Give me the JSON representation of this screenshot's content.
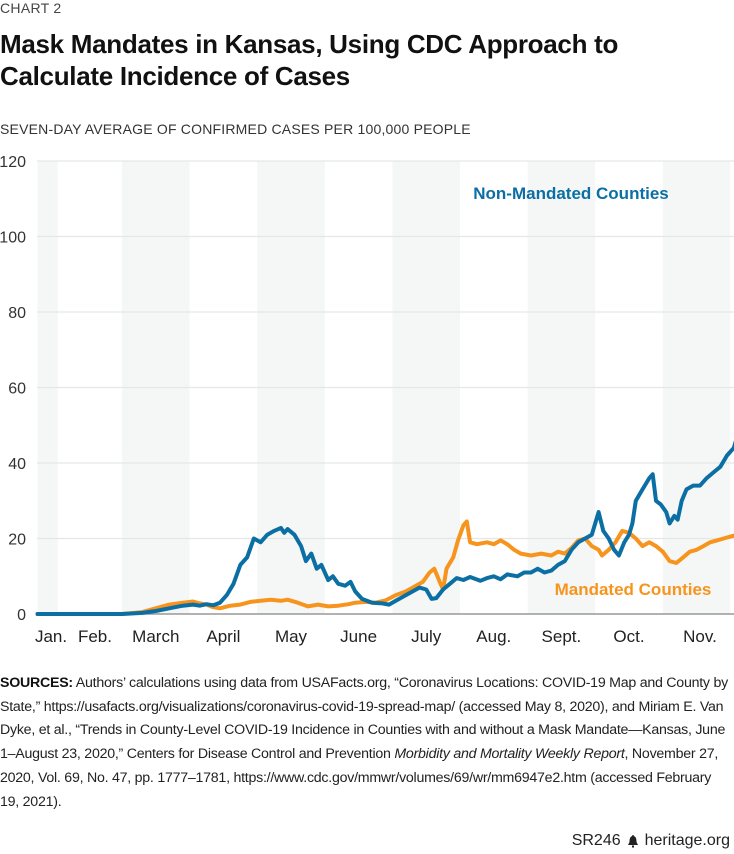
{
  "kicker": "CHART 2",
  "title": "Mask Mandates in Kansas, Using CDC Approach to Calculate Incidence of Cases",
  "subtitle": "SEVEN-DAY AVERAGE OF CONFIRMED CASES PER 100,000 PEOPLE",
  "sources": {
    "label": "SOURCES:",
    "part1": " Authors’ calculations using data from USAFacts.org, “Coronavirus Locations: COVID-19 Map and County by State,” https://usafacts.org/visualizations/coronavirus-covid-19-spread-map/ (accessed May 8, 2020), and Miriam E. Van Dyke, et al., “Trends in County-Level COVID-19 Incidence in Counties with and without a Mask Mandate—Kansas, June 1–August 23, 2020,” Centers for Disease Control and Prevention ",
    "journal": "Morbidity and Mortality Weekly Report",
    "part2": ", November 27, 2020, Vol. 69, No. 47, pp. 1777–1781, https://www.cdc.gov/mmwr/volumes/69/wr/mm6947e2.htm (accessed February 19, 2021)."
  },
  "footer": {
    "report_id": "SR246",
    "logo_icon": "liberty-bell-icon",
    "site": "heritage.org"
  },
  "chart_data": {
    "type": "line",
    "title": "Mask Mandates in Kansas, Using CDC Approach to Calculate Incidence of Cases",
    "ylabel": "Seven-day average of confirmed cases per 100,000 people",
    "xlabel": "",
    "x_unit": "month index (0 = Jan 1, 2 = Mar 1, 10 = Nov 1)",
    "xlim": [
      0.75,
      11.0
    ],
    "ylim": [
      0,
      120
    ],
    "yticks": [
      0,
      20,
      40,
      60,
      80,
      100,
      120
    ],
    "grid": true,
    "month_labels": [
      {
        "label": "Jan.",
        "x": 0.95
      },
      {
        "label": "Feb.",
        "x": 1.6
      },
      {
        "label": "March",
        "x": 2.5
      },
      {
        "label": "April",
        "x": 3.5
      },
      {
        "label": "May",
        "x": 4.5
      },
      {
        "label": "June",
        "x": 5.5
      },
      {
        "label": "July",
        "x": 6.5
      },
      {
        "label": "Aug.",
        "x": 7.5
      },
      {
        "label": "Sept.",
        "x": 8.5
      },
      {
        "label": "Oct.",
        "x": 9.5
      },
      {
        "label": "Nov.",
        "x": 10.55
      }
    ],
    "shaded_months": [
      [
        0.75,
        1.05
      ],
      [
        2,
        3
      ],
      [
        4,
        5
      ],
      [
        6,
        7
      ],
      [
        8,
        9
      ],
      [
        10,
        11
      ]
    ],
    "colors": {
      "non_mandated": "#0b6fa4",
      "mandated": "#f7941d",
      "band": "#f5f7f7",
      "grid": "#e6e6e6",
      "axis": "#999999"
    },
    "series": [
      {
        "name": "Non-Mandated Counties",
        "label_position": "upper-center",
        "points": [
          [
            0.75,
            0
          ],
          [
            1.0,
            0
          ],
          [
            1.5,
            0
          ],
          [
            2.0,
            0
          ],
          [
            2.3,
            0.3
          ],
          [
            2.5,
            0.8
          ],
          [
            2.7,
            1.5
          ],
          [
            2.9,
            2.2
          ],
          [
            3.05,
            2.5
          ],
          [
            3.15,
            2.2
          ],
          [
            3.25,
            2.6
          ],
          [
            3.35,
            2.3
          ],
          [
            3.45,
            3
          ],
          [
            3.55,
            5
          ],
          [
            3.65,
            8
          ],
          [
            3.75,
            13
          ],
          [
            3.85,
            15
          ],
          [
            3.95,
            20
          ],
          [
            4.05,
            19
          ],
          [
            4.15,
            21
          ],
          [
            4.25,
            22
          ],
          [
            4.35,
            22.8
          ],
          [
            4.4,
            21.5
          ],
          [
            4.45,
            22.5
          ],
          [
            4.55,
            21
          ],
          [
            4.65,
            18
          ],
          [
            4.72,
            14
          ],
          [
            4.8,
            16
          ],
          [
            4.88,
            12
          ],
          [
            4.95,
            13
          ],
          [
            5.05,
            9
          ],
          [
            5.12,
            10
          ],
          [
            5.2,
            8
          ],
          [
            5.3,
            7.5
          ],
          [
            5.38,
            8.5
          ],
          [
            5.45,
            6
          ],
          [
            5.55,
            4
          ],
          [
            5.7,
            3
          ],
          [
            5.85,
            2.8
          ],
          [
            5.95,
            2.5
          ],
          [
            6.05,
            3.5
          ],
          [
            6.2,
            5
          ],
          [
            6.3,
            6
          ],
          [
            6.4,
            7
          ],
          [
            6.5,
            6.5
          ],
          [
            6.58,
            4
          ],
          [
            6.65,
            4.2
          ],
          [
            6.75,
            6.5
          ],
          [
            6.85,
            8
          ],
          [
            6.95,
            9.5
          ],
          [
            7.05,
            9
          ],
          [
            7.15,
            9.8
          ],
          [
            7.3,
            8.8
          ],
          [
            7.4,
            9.5
          ],
          [
            7.5,
            10
          ],
          [
            7.6,
            9.2
          ],
          [
            7.7,
            10.5
          ],
          [
            7.85,
            10
          ],
          [
            7.95,
            11
          ],
          [
            8.05,
            11
          ],
          [
            8.15,
            12
          ],
          [
            8.25,
            11
          ],
          [
            8.35,
            11.5
          ],
          [
            8.45,
            13
          ],
          [
            8.55,
            14
          ],
          [
            8.65,
            17
          ],
          [
            8.75,
            19
          ],
          [
            8.85,
            20
          ],
          [
            8.95,
            21
          ],
          [
            9.0,
            24
          ],
          [
            9.05,
            27
          ],
          [
            9.12,
            22
          ],
          [
            9.2,
            20
          ],
          [
            9.28,
            17
          ],
          [
            9.35,
            15.5
          ],
          [
            9.43,
            19
          ],
          [
            9.5,
            21
          ],
          [
            9.55,
            24
          ],
          [
            9.6,
            30
          ],
          [
            9.7,
            33
          ],
          [
            9.8,
            36
          ],
          [
            9.85,
            37
          ],
          [
            9.9,
            30
          ],
          [
            9.97,
            29
          ],
          [
            10.05,
            27
          ],
          [
            10.1,
            24
          ],
          [
            10.17,
            26
          ],
          [
            10.22,
            25
          ],
          [
            10.28,
            30
          ],
          [
            10.35,
            33
          ],
          [
            10.45,
            34
          ],
          [
            10.55,
            34
          ],
          [
            10.65,
            36
          ],
          [
            10.75,
            37.5
          ],
          [
            10.85,
            39
          ],
          [
            10.95,
            42
          ],
          [
            11.05,
            44
          ],
          [
            11.15,
            50
          ],
          [
            11.22,
            52
          ],
          [
            11.25,
            48
          ]
        ]
      },
      {
        "name": "Mandated Counties",
        "label_position": "lower-right",
        "points": [
          [
            0.75,
            0
          ],
          [
            1.0,
            0
          ],
          [
            1.5,
            0
          ],
          [
            2.0,
            0
          ],
          [
            2.3,
            0.5
          ],
          [
            2.5,
            1.5
          ],
          [
            2.7,
            2.5
          ],
          [
            2.9,
            3
          ],
          [
            3.05,
            3.3
          ],
          [
            3.15,
            2.8
          ],
          [
            3.25,
            2.5
          ],
          [
            3.35,
            1.8
          ],
          [
            3.45,
            1.5
          ],
          [
            3.6,
            2.2
          ],
          [
            3.75,
            2.5
          ],
          [
            3.9,
            3.2
          ],
          [
            4.05,
            3.5
          ],
          [
            4.2,
            3.8
          ],
          [
            4.35,
            3.5
          ],
          [
            4.45,
            3.8
          ],
          [
            4.6,
            3
          ],
          [
            4.75,
            2
          ],
          [
            4.9,
            2.5
          ],
          [
            5.05,
            2
          ],
          [
            5.2,
            2.2
          ],
          [
            5.35,
            2.6
          ],
          [
            5.45,
            3
          ],
          [
            5.6,
            3.2
          ],
          [
            5.75,
            3
          ],
          [
            5.9,
            3.6
          ],
          [
            6.05,
            5
          ],
          [
            6.2,
            6
          ],
          [
            6.3,
            7
          ],
          [
            6.45,
            8.5
          ],
          [
            6.55,
            11
          ],
          [
            6.62,
            12
          ],
          [
            6.7,
            8.5
          ],
          [
            6.75,
            6.5
          ],
          [
            6.8,
            12
          ],
          [
            6.9,
            15
          ],
          [
            6.97,
            19.5
          ],
          [
            7.05,
            23.5
          ],
          [
            7.1,
            24.5
          ],
          [
            7.15,
            19
          ],
          [
            7.25,
            18.5
          ],
          [
            7.4,
            19
          ],
          [
            7.5,
            18.5
          ],
          [
            7.6,
            19.5
          ],
          [
            7.7,
            18.5
          ],
          [
            7.8,
            17
          ],
          [
            7.9,
            16
          ],
          [
            8.05,
            15.5
          ],
          [
            8.2,
            16
          ],
          [
            8.35,
            15.5
          ],
          [
            8.45,
            16.5
          ],
          [
            8.55,
            16
          ],
          [
            8.65,
            17.5
          ],
          [
            8.75,
            19.5
          ],
          [
            8.85,
            20
          ],
          [
            8.95,
            18
          ],
          [
            9.05,
            17
          ],
          [
            9.1,
            15.5
          ],
          [
            9.2,
            17
          ],
          [
            9.3,
            19
          ],
          [
            9.4,
            22
          ],
          [
            9.5,
            21.5
          ],
          [
            9.6,
            20
          ],
          [
            9.7,
            18
          ],
          [
            9.8,
            19
          ],
          [
            9.9,
            18
          ],
          [
            10.0,
            16.5
          ],
          [
            10.1,
            14
          ],
          [
            10.2,
            13.5
          ],
          [
            10.3,
            15
          ],
          [
            10.4,
            16.5
          ],
          [
            10.5,
            17
          ],
          [
            10.6,
            18
          ],
          [
            10.7,
            19
          ],
          [
            10.8,
            19.5
          ],
          [
            10.9,
            20
          ],
          [
            11.0,
            20.5
          ],
          [
            11.1,
            21
          ],
          [
            11.2,
            22.5
          ],
          [
            11.25,
            23
          ]
        ]
      }
    ]
  }
}
